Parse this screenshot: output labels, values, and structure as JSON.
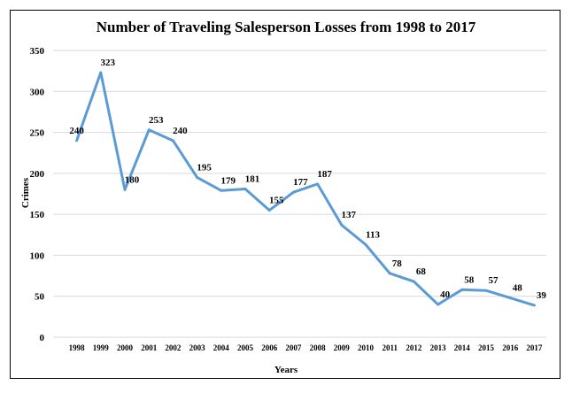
{
  "chart_data": {
    "type": "line",
    "title": "Number of Traveling Salesperson  Losses from 1998 to 2017",
    "xlabel": "Years",
    "ylabel": "Crimes",
    "ylim": [
      0,
      350
    ],
    "yticks": [
      0,
      50,
      100,
      150,
      200,
      250,
      300,
      350
    ],
    "grid": true,
    "legend": "none",
    "line_color": "#5b9bd5",
    "categories": [
      "1998",
      "1999",
      "2000",
      "2001",
      "2002",
      "2003",
      "2004",
      "2005",
      "2006",
      "2007",
      "2008",
      "2009",
      "2010",
      "2011",
      "2012",
      "2013",
      "2014",
      "2015",
      "2016",
      "2017"
    ],
    "series": [
      {
        "name": "Crimes",
        "values": [
          240,
          323,
          180,
          253,
          240,
          195,
          179,
          181,
          155,
          177,
          187,
          137,
          113,
          78,
          68,
          40,
          58,
          57,
          48,
          39
        ]
      }
    ]
  }
}
